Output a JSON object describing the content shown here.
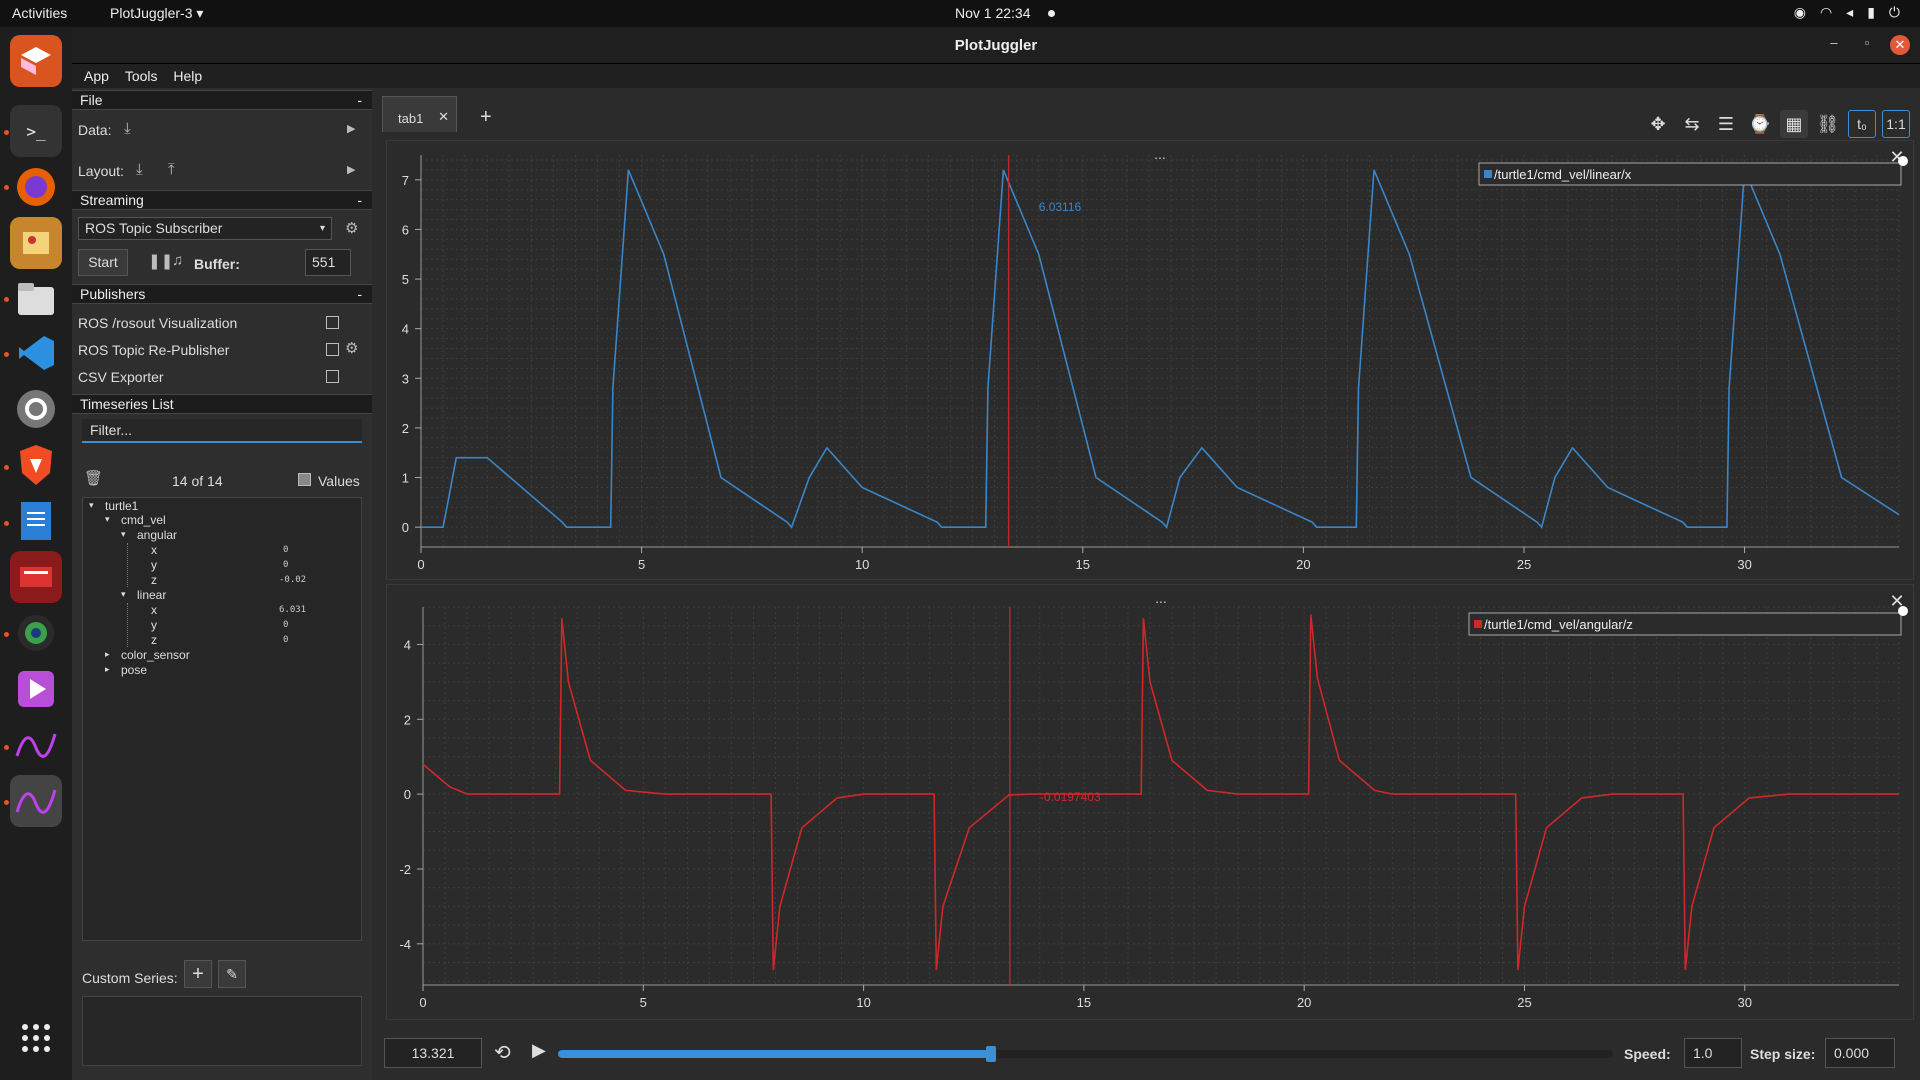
{
  "system": {
    "activities": "Activities",
    "app_menu": "PlotJuggler-3 ▾",
    "clock": "Nov 1  22:34"
  },
  "window": {
    "title": "PlotJuggler"
  },
  "menu": [
    "App",
    "Tools",
    "Help"
  ],
  "file": {
    "header": "File",
    "data_label": "Data:",
    "layout_label": "Layout:"
  },
  "streaming": {
    "header": "Streaming",
    "source": "ROS Topic Subscriber",
    "start": "Start",
    "buffer_label": "Buffer:",
    "buffer_value": "551"
  },
  "publishers": {
    "header": "Publishers",
    "items": [
      "ROS /rosout Visualization",
      "ROS Topic Re-Publisher",
      "CSV Exporter"
    ]
  },
  "timeseries": {
    "header": "Timeseries List",
    "filter_placeholder": "Filter...",
    "count": "14 of 14",
    "values_label": "Values",
    "tree": {
      "root": "turtle1",
      "cmd_vel": "cmd_vel",
      "angular": "angular",
      "linear": "linear",
      "x": "x",
      "y": "y",
      "z": "z",
      "angular_x": "0",
      "angular_y": "0",
      "angular_z": "-0.02",
      "linear_x": "6.031",
      "linear_y": "0",
      "linear_z": "0",
      "color_sensor": "color_sensor",
      "pose": "pose"
    }
  },
  "custom_series": {
    "label": "Custom Series:"
  },
  "tabs": [
    {
      "label": "tab1"
    }
  ],
  "plots": [
    {
      "legend": "/turtle1/cmd_vel/linear/x",
      "color": "#3a86c8",
      "tracker_value": "6.03116",
      "menu_dots": "..."
    },
    {
      "legend": "/turtle1/cmd_vel/angular/z",
      "color": "#d02828",
      "tracker_value": "-0.0197403",
      "menu_dots": "..."
    }
  ],
  "playback": {
    "time": "13.321",
    "speed_label": "Speed:",
    "speed": "1.0",
    "step_label": "Step size:",
    "step": "0.000",
    "progress": 0.41
  },
  "chart_data": [
    {
      "type": "line",
      "series": [
        {
          "name": "/turtle1/cmd_vel/linear/x",
          "x": [
            0,
            0.5,
            0.8,
            1.5,
            3.2,
            3.3,
            4.3,
            4.35,
            4.7,
            5.5,
            6.8,
            8.3,
            8.4,
            8.8,
            9.2,
            10.0,
            11.7,
            11.8,
            12.8,
            12.85,
            13.2,
            14.0,
            15.3,
            16.8,
            16.9,
            17.2,
            17.7,
            18.5,
            20.2,
            20.3,
            21.2,
            21.25,
            21.6,
            22.4,
            23.8,
            25.3,
            25.4,
            25.7,
            26.1,
            26.9,
            28.6,
            28.7,
            29.6,
            29.65,
            30.0,
            30.8,
            32.2,
            33.5
          ],
          "y": [
            0,
            0,
            1.4,
            1.4,
            0.1,
            0,
            0,
            2.8,
            7.2,
            5.5,
            1.0,
            0.1,
            0,
            1.0,
            1.6,
            0.8,
            0.1,
            0,
            0,
            2.8,
            7.2,
            5.5,
            1.0,
            0.1,
            0,
            1.0,
            1.6,
            0.8,
            0.1,
            0,
            0,
            2.8,
            7.2,
            5.5,
            1.0,
            0.1,
            0,
            1.0,
            1.6,
            0.8,
            0.1,
            0,
            0,
            2.8,
            7.2,
            5.5,
            1.0,
            0.25
          ]
        }
      ],
      "xlim": [
        0,
        33.5
      ],
      "ylim": [
        -0.4,
        7.5
      ],
      "xticks": [
        0,
        5,
        10,
        15,
        20,
        25,
        30
      ],
      "yticks": [
        0,
        1,
        2,
        3,
        4,
        5,
        6,
        7
      ],
      "cursor_x": 13.321,
      "grid": true,
      "legend_position": "top-right"
    },
    {
      "type": "line",
      "series": [
        {
          "name": "/turtle1/cmd_vel/angular/z",
          "x": [
            0,
            0.3,
            0.6,
            1.0,
            3.1,
            3.15,
            3.3,
            3.8,
            4.6,
            5.5,
            7.9,
            7.95,
            8.1,
            8.6,
            9.4,
            10.0,
            11.6,
            11.65,
            11.8,
            12.4,
            13.3,
            13.8,
            16.3,
            16.35,
            16.5,
            17.0,
            17.8,
            18.5,
            20.1,
            20.15,
            20.3,
            20.8,
            21.6,
            22.0,
            24.8,
            24.85,
            25.0,
            25.5,
            26.3,
            27.0,
            28.6,
            28.65,
            28.8,
            29.3,
            30.1,
            31.0,
            33.5
          ],
          "y": [
            0.8,
            0.5,
            0.2,
            0,
            0,
            4.7,
            3.0,
            0.9,
            0.1,
            0,
            0,
            -4.7,
            -3.0,
            -0.9,
            -0.1,
            0,
            0,
            -4.7,
            -3.0,
            -0.9,
            -0.02,
            0,
            0,
            4.7,
            3.0,
            0.9,
            0.1,
            0,
            0,
            4.8,
            3.1,
            0.9,
            0.1,
            0,
            0,
            -4.7,
            -3.0,
            -0.9,
            -0.1,
            0,
            0,
            -4.7,
            -3.0,
            -0.9,
            -0.1,
            0,
            0
          ]
        }
      ],
      "xlim": [
        0,
        33.5
      ],
      "ylim": [
        -5.1,
        5.0
      ],
      "xticks": [
        0,
        5,
        10,
        15,
        20,
        25,
        30
      ],
      "yticks": [
        -4,
        -2,
        0,
        2,
        4
      ],
      "cursor_x": 13.321,
      "grid": true,
      "legend_position": "top-right"
    }
  ]
}
